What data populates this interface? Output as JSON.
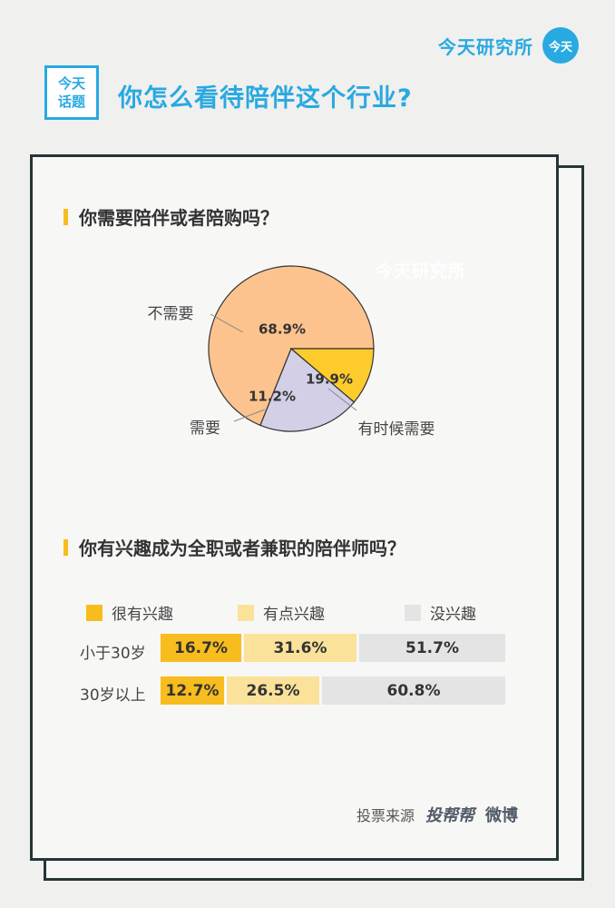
{
  "brand": {
    "name": "今天研究所",
    "badge": "今天"
  },
  "topic_badge": {
    "line1": "今天",
    "line2": "话题"
  },
  "page_title": "你怎么看待陪伴这个行业?",
  "watermark": "今天研究所",
  "source": {
    "label": "投票来源",
    "logo1": "投帮帮",
    "logo2": "微博"
  },
  "colors": {
    "accent": "#29a9e1",
    "gold": "#f7bc1e",
    "pale_yellow": "#fbe29a",
    "light_gray": "#e4e4e4",
    "pie_orange": "#fdc38e",
    "pie_yellow": "#fdcb2c",
    "pie_lavender": "#d3cfe6",
    "frame": "#243636"
  },
  "chart_data": [
    {
      "type": "pie",
      "title": "你需要陪伴或者陪购吗？",
      "slices": [
        {
          "label": "不需要",
          "value": 68.9,
          "value_label": "68.9%"
        },
        {
          "label": "有时候需要",
          "value": 19.9,
          "value_label": "19.9%"
        },
        {
          "label": "需要",
          "value": 11.2,
          "value_label": "11.2%"
        }
      ]
    },
    {
      "type": "bar",
      "orientation": "horizontal",
      "stacked": true,
      "title": "你有兴趣成为全职或者兼职的陪伴师吗？",
      "categories": [
        "小于30岁",
        "30岁以上"
      ],
      "series": [
        {
          "name": "很有兴趣",
          "values": [
            16.7,
            12.7
          ],
          "labels": [
            "16.7%",
            "12.7%"
          ]
        },
        {
          "name": "有点兴趣",
          "values": [
            31.6,
            26.5
          ],
          "labels": [
            "31.6%",
            "26.5%"
          ]
        },
        {
          "name": "没兴趣",
          "values": [
            51.7,
            60.8
          ],
          "labels": [
            "51.7%",
            "60.8%"
          ]
        }
      ]
    }
  ]
}
